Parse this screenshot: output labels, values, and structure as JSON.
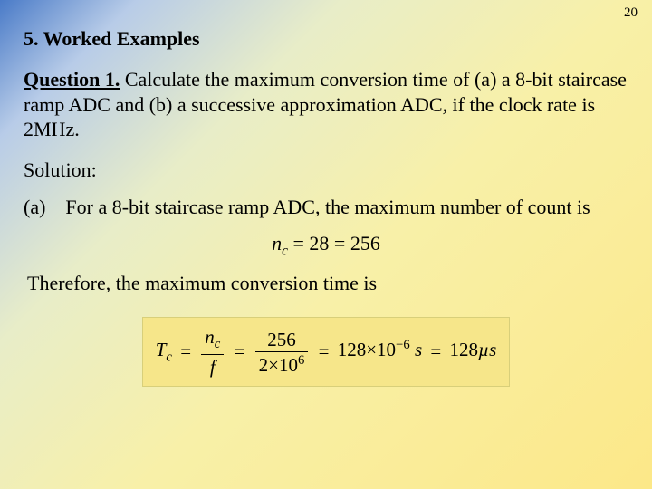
{
  "page_number": "20",
  "heading": "5. Worked Examples",
  "question_label": "Question 1.",
  "question_text": " Calculate the maximum conversion time of (a) a 8-bit staircase ramp ADC and (b) a successive approximation ADC, if the clock rate is 2MHz.",
  "solution_label": "Solution:",
  "part_a_label": "(a)",
  "part_a_text": "For a 8-bit staircase ramp ADC, the maximum number of count is",
  "nc_line_prefix": "n",
  "nc_sub": "c",
  "nc_line_rest": " = 28 = 256",
  "therefore": "Therefore, the maximum conversion time is",
  "formula": {
    "T": "T",
    "Tsub": "c",
    "frac1_num_n": "n",
    "frac1_num_sub": "c",
    "frac1_den": "f",
    "frac2_num": "256",
    "frac2_den_base": "2",
    "frac2_den_times": "×",
    "frac2_den_ten": "10",
    "frac2_den_exp": "6",
    "rhs_128": "128",
    "rhs_times": "×",
    "rhs_ten": "10",
    "rhs_exp": "−6",
    "rhs_s": "s",
    "rhs_eq128": "128",
    "rhs_mu": "µ",
    "rhs_s2": "s"
  }
}
